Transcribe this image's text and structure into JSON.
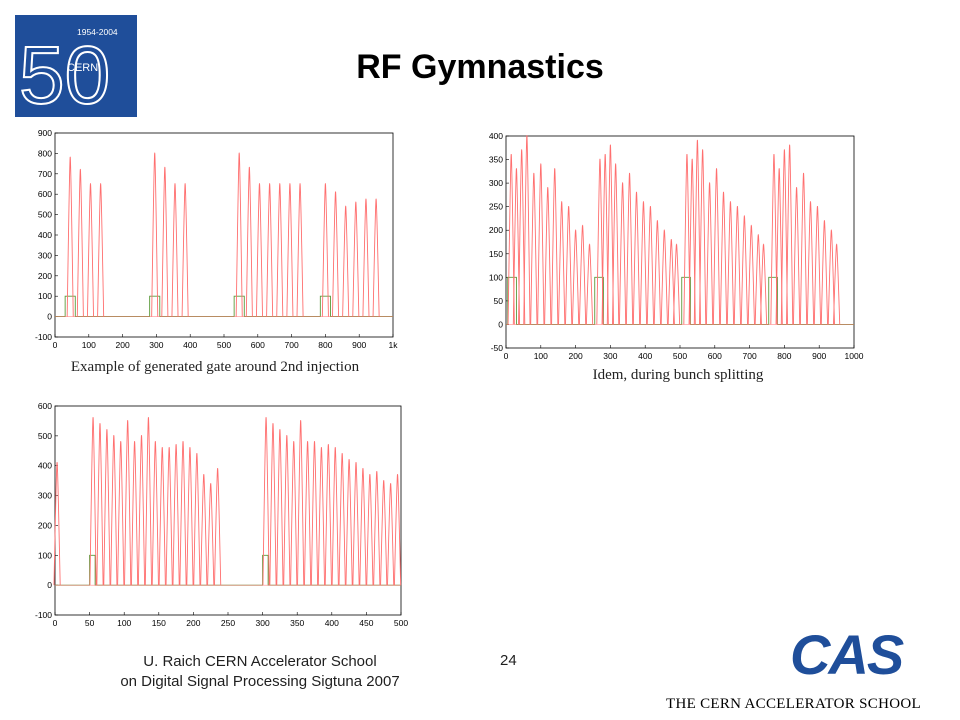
{
  "slide": {
    "title": "RF Gymnastics",
    "page_number": "24",
    "footer_line1": "U. Raich  CERN Accelerator School",
    "footer_line2": "on Digital Signal Processing  Sigtuna 2007",
    "org_name": "THE CERN ACCELERATOR SCHOOL"
  },
  "logo": {
    "years": "1954-2004",
    "label": "CERN",
    "number": "50",
    "bg_color": "#1f4e9a"
  },
  "cas_logo": {
    "text": "CAS",
    "color": "#1f4e9a"
  },
  "colors": {
    "signal": "#ff6f6f",
    "gate": "#5a9a3a",
    "frame": "#000000"
  },
  "chart_data": [
    {
      "type": "line",
      "caption": "Example of generated gate around 2nd injection",
      "xlim": [
        0,
        1000
      ],
      "ylim": [
        -100,
        900
      ],
      "xticks": [
        "0",
        "100",
        "200",
        "300",
        "400",
        "500",
        "600",
        "700",
        "800",
        "900",
        "1k"
      ],
      "xtick_values": [
        0,
        100,
        200,
        300,
        400,
        500,
        600,
        700,
        800,
        900,
        1000
      ],
      "yticks": [
        -100,
        0,
        100,
        200,
        300,
        400,
        500,
        600,
        700,
        800,
        900
      ],
      "series": [
        {
          "role": "signal",
          "pulses": [
            {
              "x": 45,
              "peak": 780
            },
            {
              "x": 75,
              "peak": 720
            },
            {
              "x": 105,
              "peak": 650
            },
            {
              "x": 135,
              "peak": 650
            },
            {
              "x": 295,
              "peak": 800
            },
            {
              "x": 325,
              "peak": 730
            },
            {
              "x": 355,
              "peak": 650
            },
            {
              "x": 385,
              "peak": 650
            },
            {
              "x": 545,
              "peak": 800
            },
            {
              "x": 575,
              "peak": 730
            },
            {
              "x": 605,
              "peak": 650
            },
            {
              "x": 635,
              "peak": 650
            },
            {
              "x": 665,
              "peak": 650
            },
            {
              "x": 695,
              "peak": 650
            },
            {
              "x": 725,
              "peak": 650
            },
            {
              "x": 800,
              "peak": 650
            },
            {
              "x": 830,
              "peak": 610
            },
            {
              "x": 860,
              "peak": 540
            },
            {
              "x": 890,
              "peak": 560
            },
            {
              "x": 920,
              "peak": 575
            },
            {
              "x": 950,
              "peak": 575
            }
          ]
        },
        {
          "role": "gate",
          "gates": [
            {
              "start": 30,
              "end": 60,
              "level": 100
            },
            {
              "start": 280,
              "end": 310,
              "level": 100
            },
            {
              "start": 530,
              "end": 560,
              "level": 100
            },
            {
              "start": 785,
              "end": 815,
              "level": 100
            }
          ]
        }
      ]
    },
    {
      "type": "line",
      "caption": "Idem, during bunch splitting",
      "xlim": [
        0,
        1000
      ],
      "ylim": [
        -50,
        400
      ],
      "xticks": [
        "0",
        "100",
        "200",
        "300",
        "400",
        "500",
        "600",
        "700",
        "800",
        "900",
        "1000"
      ],
      "xtick_values": [
        0,
        100,
        200,
        300,
        400,
        500,
        600,
        700,
        800,
        900,
        1000
      ],
      "yticks": [
        -50,
        0,
        50,
        100,
        150,
        200,
        250,
        300,
        350,
        400
      ],
      "series": [
        {
          "role": "signal",
          "pulses": [
            {
              "x": 15,
              "peak": 360
            },
            {
              "x": 30,
              "peak": 330
            },
            {
              "x": 45,
              "peak": 370
            },
            {
              "x": 60,
              "peak": 400
            },
            {
              "x": 80,
              "peak": 320
            },
            {
              "x": 100,
              "peak": 340
            },
            {
              "x": 120,
              "peak": 290
            },
            {
              "x": 140,
              "peak": 330
            },
            {
              "x": 160,
              "peak": 260
            },
            {
              "x": 180,
              "peak": 250
            },
            {
              "x": 200,
              "peak": 200
            },
            {
              "x": 220,
              "peak": 210
            },
            {
              "x": 240,
              "peak": 170
            },
            {
              "x": 270,
              "peak": 350
            },
            {
              "x": 285,
              "peak": 360
            },
            {
              "x": 300,
              "peak": 380
            },
            {
              "x": 315,
              "peak": 340
            },
            {
              "x": 335,
              "peak": 300
            },
            {
              "x": 355,
              "peak": 320
            },
            {
              "x": 375,
              "peak": 280
            },
            {
              "x": 395,
              "peak": 260
            },
            {
              "x": 415,
              "peak": 250
            },
            {
              "x": 435,
              "peak": 220
            },
            {
              "x": 455,
              "peak": 200
            },
            {
              "x": 475,
              "peak": 180
            },
            {
              "x": 490,
              "peak": 170
            },
            {
              "x": 520,
              "peak": 360
            },
            {
              "x": 535,
              "peak": 350
            },
            {
              "x": 550,
              "peak": 390
            },
            {
              "x": 565,
              "peak": 370
            },
            {
              "x": 585,
              "peak": 300
            },
            {
              "x": 605,
              "peak": 330
            },
            {
              "x": 625,
              "peak": 280
            },
            {
              "x": 645,
              "peak": 260
            },
            {
              "x": 665,
              "peak": 250
            },
            {
              "x": 685,
              "peak": 230
            },
            {
              "x": 705,
              "peak": 210
            },
            {
              "x": 725,
              "peak": 190
            },
            {
              "x": 740,
              "peak": 170
            },
            {
              "x": 770,
              "peak": 360
            },
            {
              "x": 785,
              "peak": 330
            },
            {
              "x": 800,
              "peak": 370
            },
            {
              "x": 815,
              "peak": 380
            },
            {
              "x": 835,
              "peak": 290
            },
            {
              "x": 855,
              "peak": 320
            },
            {
              "x": 875,
              "peak": 260
            },
            {
              "x": 895,
              "peak": 250
            },
            {
              "x": 915,
              "peak": 220
            },
            {
              "x": 935,
              "peak": 200
            },
            {
              "x": 950,
              "peak": 170
            }
          ]
        },
        {
          "role": "gate",
          "gates": [
            {
              "start": 5,
              "end": 30,
              "level": 100
            },
            {
              "start": 255,
              "end": 280,
              "level": 100
            },
            {
              "start": 505,
              "end": 530,
              "level": 100
            },
            {
              "start": 755,
              "end": 780,
              "level": 100
            }
          ]
        }
      ]
    },
    {
      "type": "line",
      "caption": "",
      "xlim": [
        0,
        500
      ],
      "ylim": [
        -100,
        600
      ],
      "xticks": [
        "0",
        "50",
        "100",
        "150",
        "200",
        "250",
        "300",
        "350",
        "400",
        "450",
        "500"
      ],
      "xtick_values": [
        0,
        50,
        100,
        150,
        200,
        250,
        300,
        350,
        400,
        450,
        500
      ],
      "yticks": [
        -100,
        0,
        100,
        200,
        300,
        400,
        500,
        600
      ],
      "series": [
        {
          "role": "signal",
          "pulses": [
            {
              "x": 3,
              "peak": 410
            },
            {
              "x": 55,
              "peak": 560
            },
            {
              "x": 65,
              "peak": 540
            },
            {
              "x": 75,
              "peak": 520
            },
            {
              "x": 85,
              "peak": 500
            },
            {
              "x": 95,
              "peak": 480
            },
            {
              "x": 105,
              "peak": 550
            },
            {
              "x": 115,
              "peak": 480
            },
            {
              "x": 125,
              "peak": 500
            },
            {
              "x": 135,
              "peak": 560
            },
            {
              "x": 145,
              "peak": 480
            },
            {
              "x": 155,
              "peak": 460
            },
            {
              "x": 165,
              "peak": 460
            },
            {
              "x": 175,
              "peak": 470
            },
            {
              "x": 185,
              "peak": 480
            },
            {
              "x": 195,
              "peak": 460
            },
            {
              "x": 205,
              "peak": 440
            },
            {
              "x": 215,
              "peak": 370
            },
            {
              "x": 225,
              "peak": 340
            },
            {
              "x": 235,
              "peak": 390
            },
            {
              "x": 305,
              "peak": 560
            },
            {
              "x": 315,
              "peak": 540
            },
            {
              "x": 325,
              "peak": 520
            },
            {
              "x": 335,
              "peak": 500
            },
            {
              "x": 345,
              "peak": 480
            },
            {
              "x": 355,
              "peak": 550
            },
            {
              "x": 365,
              "peak": 480
            },
            {
              "x": 375,
              "peak": 480
            },
            {
              "x": 385,
              "peak": 460
            },
            {
              "x": 395,
              "peak": 470
            },
            {
              "x": 405,
              "peak": 460
            },
            {
              "x": 415,
              "peak": 440
            },
            {
              "x": 425,
              "peak": 420
            },
            {
              "x": 435,
              "peak": 410
            },
            {
              "x": 445,
              "peak": 390
            },
            {
              "x": 455,
              "peak": 370
            },
            {
              "x": 465,
              "peak": 380
            },
            {
              "x": 475,
              "peak": 350
            },
            {
              "x": 485,
              "peak": 340
            },
            {
              "x": 495,
              "peak": 370
            }
          ]
        },
        {
          "role": "gate",
          "gates": [
            {
              "start": 50,
              "end": 58,
              "level": 100
            },
            {
              "start": 300,
              "end": 308,
              "level": 100
            }
          ]
        }
      ]
    }
  ]
}
